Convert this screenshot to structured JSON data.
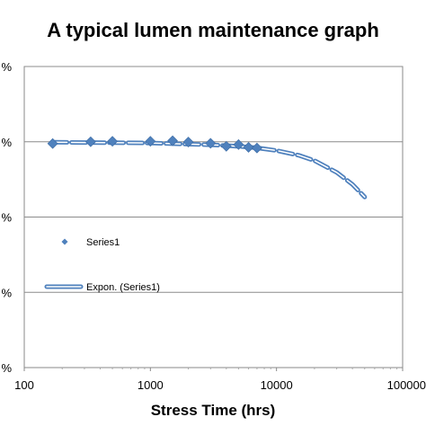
{
  "chart_data": {
    "type": "scatter",
    "title": "A typical lumen maintenance graph",
    "xlabel": "Stress Time (hrs)",
    "ylabel": "",
    "xscale": "log",
    "xlim": [
      100,
      100000
    ],
    "ylim": [
      0,
      120
    ],
    "x_ticks": [
      100,
      1000,
      10000,
      100000
    ],
    "x_tick_labels": [
      "100",
      "1000",
      "10000",
      "100000"
    ],
    "y_ticks": [
      0,
      30,
      60,
      90,
      120
    ],
    "y_tick_labels": [
      "%",
      "%",
      "%",
      "%",
      "%"
    ],
    "grid": "horizontal",
    "legend_position": "left",
    "series": [
      {
        "name": "Series1",
        "marker": "diamond",
        "color": "#4F81BD",
        "x": [
          168,
          336,
          500,
          1000,
          1500,
          2000,
          3000,
          4000,
          5000,
          6000,
          7000
        ],
        "y": [
          89.3,
          90.0,
          90.2,
          90.2,
          90.4,
          89.9,
          89.4,
          88.2,
          88.9,
          87.8,
          87.5
        ]
      },
      {
        "name": "Expon. (Series1)",
        "type": "trendline",
        "style": "dashed",
        "color": "#4F81BD",
        "x": [
          168,
          1000,
          3000,
          5000,
          7000,
          10000,
          15000,
          20000,
          30000,
          40000,
          50000
        ],
        "y": [
          89.8,
          89.5,
          88.8,
          88.2,
          87.6,
          86.5,
          84.6,
          82.5,
          77.8,
          73.0,
          68.0
        ]
      }
    ]
  }
}
